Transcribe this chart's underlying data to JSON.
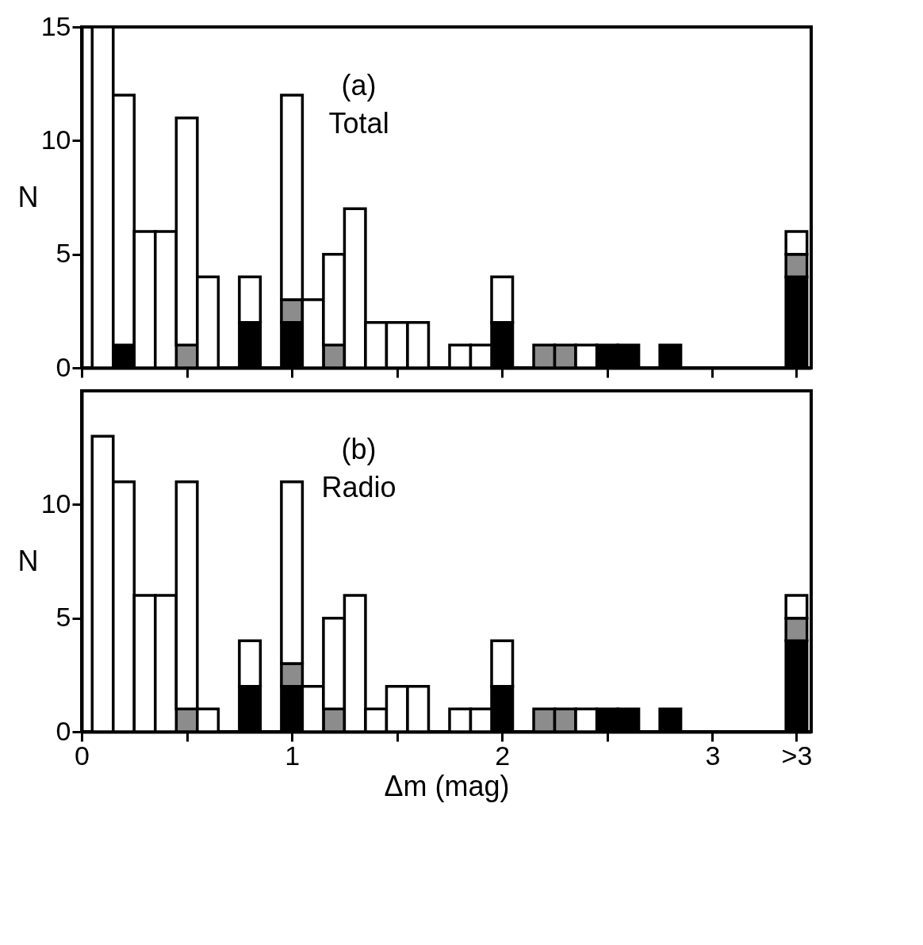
{
  "chart_data": [
    {
      "type": "bar",
      "stacked": true,
      "annotations": [
        "(a)",
        "Total"
      ],
      "ylabel": "N",
      "tick_labels": "y",
      "grid": false,
      "xticks": [
        0,
        {
          "value": 0.5,
          "label": null
        },
        1,
        {
          "value": 1.5,
          "label": null
        },
        2,
        {
          "value": 2.5,
          "label": null
        },
        3,
        {
          "value": 3.4,
          "label": null
        }
      ],
      "x": [
        0.1,
        0.2,
        0.3,
        0.4,
        0.5,
        0.6,
        0.8,
        1.0,
        1.1,
        1.2,
        1.3,
        1.4,
        1.5,
        1.6,
        1.8,
        1.9,
        2.0,
        2.2,
        2.3,
        2.4,
        2.5,
        2.6,
        2.8,
        3.4
      ],
      "series": [
        {
          "color": "#000000",
          "values": [
            null,
            1,
            null,
            null,
            null,
            null,
            2,
            2,
            null,
            null,
            null,
            null,
            null,
            null,
            null,
            null,
            2,
            null,
            null,
            null,
            1,
            1,
            1,
            4
          ]
        },
        {
          "color": "#8c8c8c",
          "values": [
            null,
            null,
            null,
            null,
            1,
            null,
            null,
            1,
            null,
            1,
            null,
            null,
            null,
            null,
            null,
            null,
            null,
            1,
            1,
            null,
            null,
            null,
            null,
            1
          ]
        },
        {
          "color": "#ffffff",
          "values": [
            15,
            11,
            6,
            6,
            10,
            4,
            2,
            9,
            3,
            4,
            7,
            2,
            2,
            2,
            1,
            1,
            2,
            null,
            null,
            1,
            null,
            null,
            null,
            1
          ]
        }
      ],
      "xlim": [
        0,
        3.47
      ],
      "ylim": [
        0,
        15
      ],
      "yticks": [
        0,
        5,
        10,
        15
      ]
    },
    {
      "type": "bar",
      "stacked": true,
      "annotations": [
        "(b)",
        "Radio"
      ],
      "ylabel": "N",
      "xlabel": "Δm (mag)",
      "grid": false,
      "x": [
        0.1,
        0.2,
        0.3,
        0.4,
        0.5,
        0.6,
        0.8,
        1.0,
        1.1,
        1.2,
        1.3,
        1.4,
        1.5,
        1.6,
        1.8,
        1.9,
        2.0,
        2.2,
        2.3,
        2.4,
        2.5,
        2.6,
        2.8,
        3.4
      ],
      "series": [
        {
          "color": "#000000",
          "values": [
            null,
            null,
            null,
            null,
            null,
            null,
            2,
            2,
            null,
            null,
            null,
            null,
            null,
            null,
            null,
            null,
            2,
            null,
            null,
            null,
            1,
            1,
            1,
            4
          ]
        },
        {
          "color": "#8c8c8c",
          "values": [
            null,
            null,
            null,
            null,
            1,
            null,
            null,
            1,
            null,
            1,
            null,
            null,
            null,
            null,
            null,
            null,
            null,
            1,
            1,
            null,
            null,
            null,
            null,
            1
          ]
        },
        {
          "color": "#ffffff",
          "values": [
            13,
            11,
            6,
            6,
            10,
            1,
            2,
            8,
            2,
            4,
            6,
            1,
            2,
            2,
            1,
            1,
            2,
            null,
            null,
            1,
            null,
            null,
            null,
            1
          ]
        }
      ],
      "xlim": [
        0,
        3.47
      ],
      "xticks": [
        0,
        {
          "value": 0.5,
          "label": null
        },
        1,
        {
          "value": 1.5,
          "label": null
        },
        2,
        {
          "value": 2.5,
          "label": null
        },
        3,
        {
          "value": 3.4,
          "label": ">3"
        }
      ],
      "ylim": [
        0,
        15
      ],
      "yticks": [
        0,
        5,
        10
      ]
    }
  ]
}
